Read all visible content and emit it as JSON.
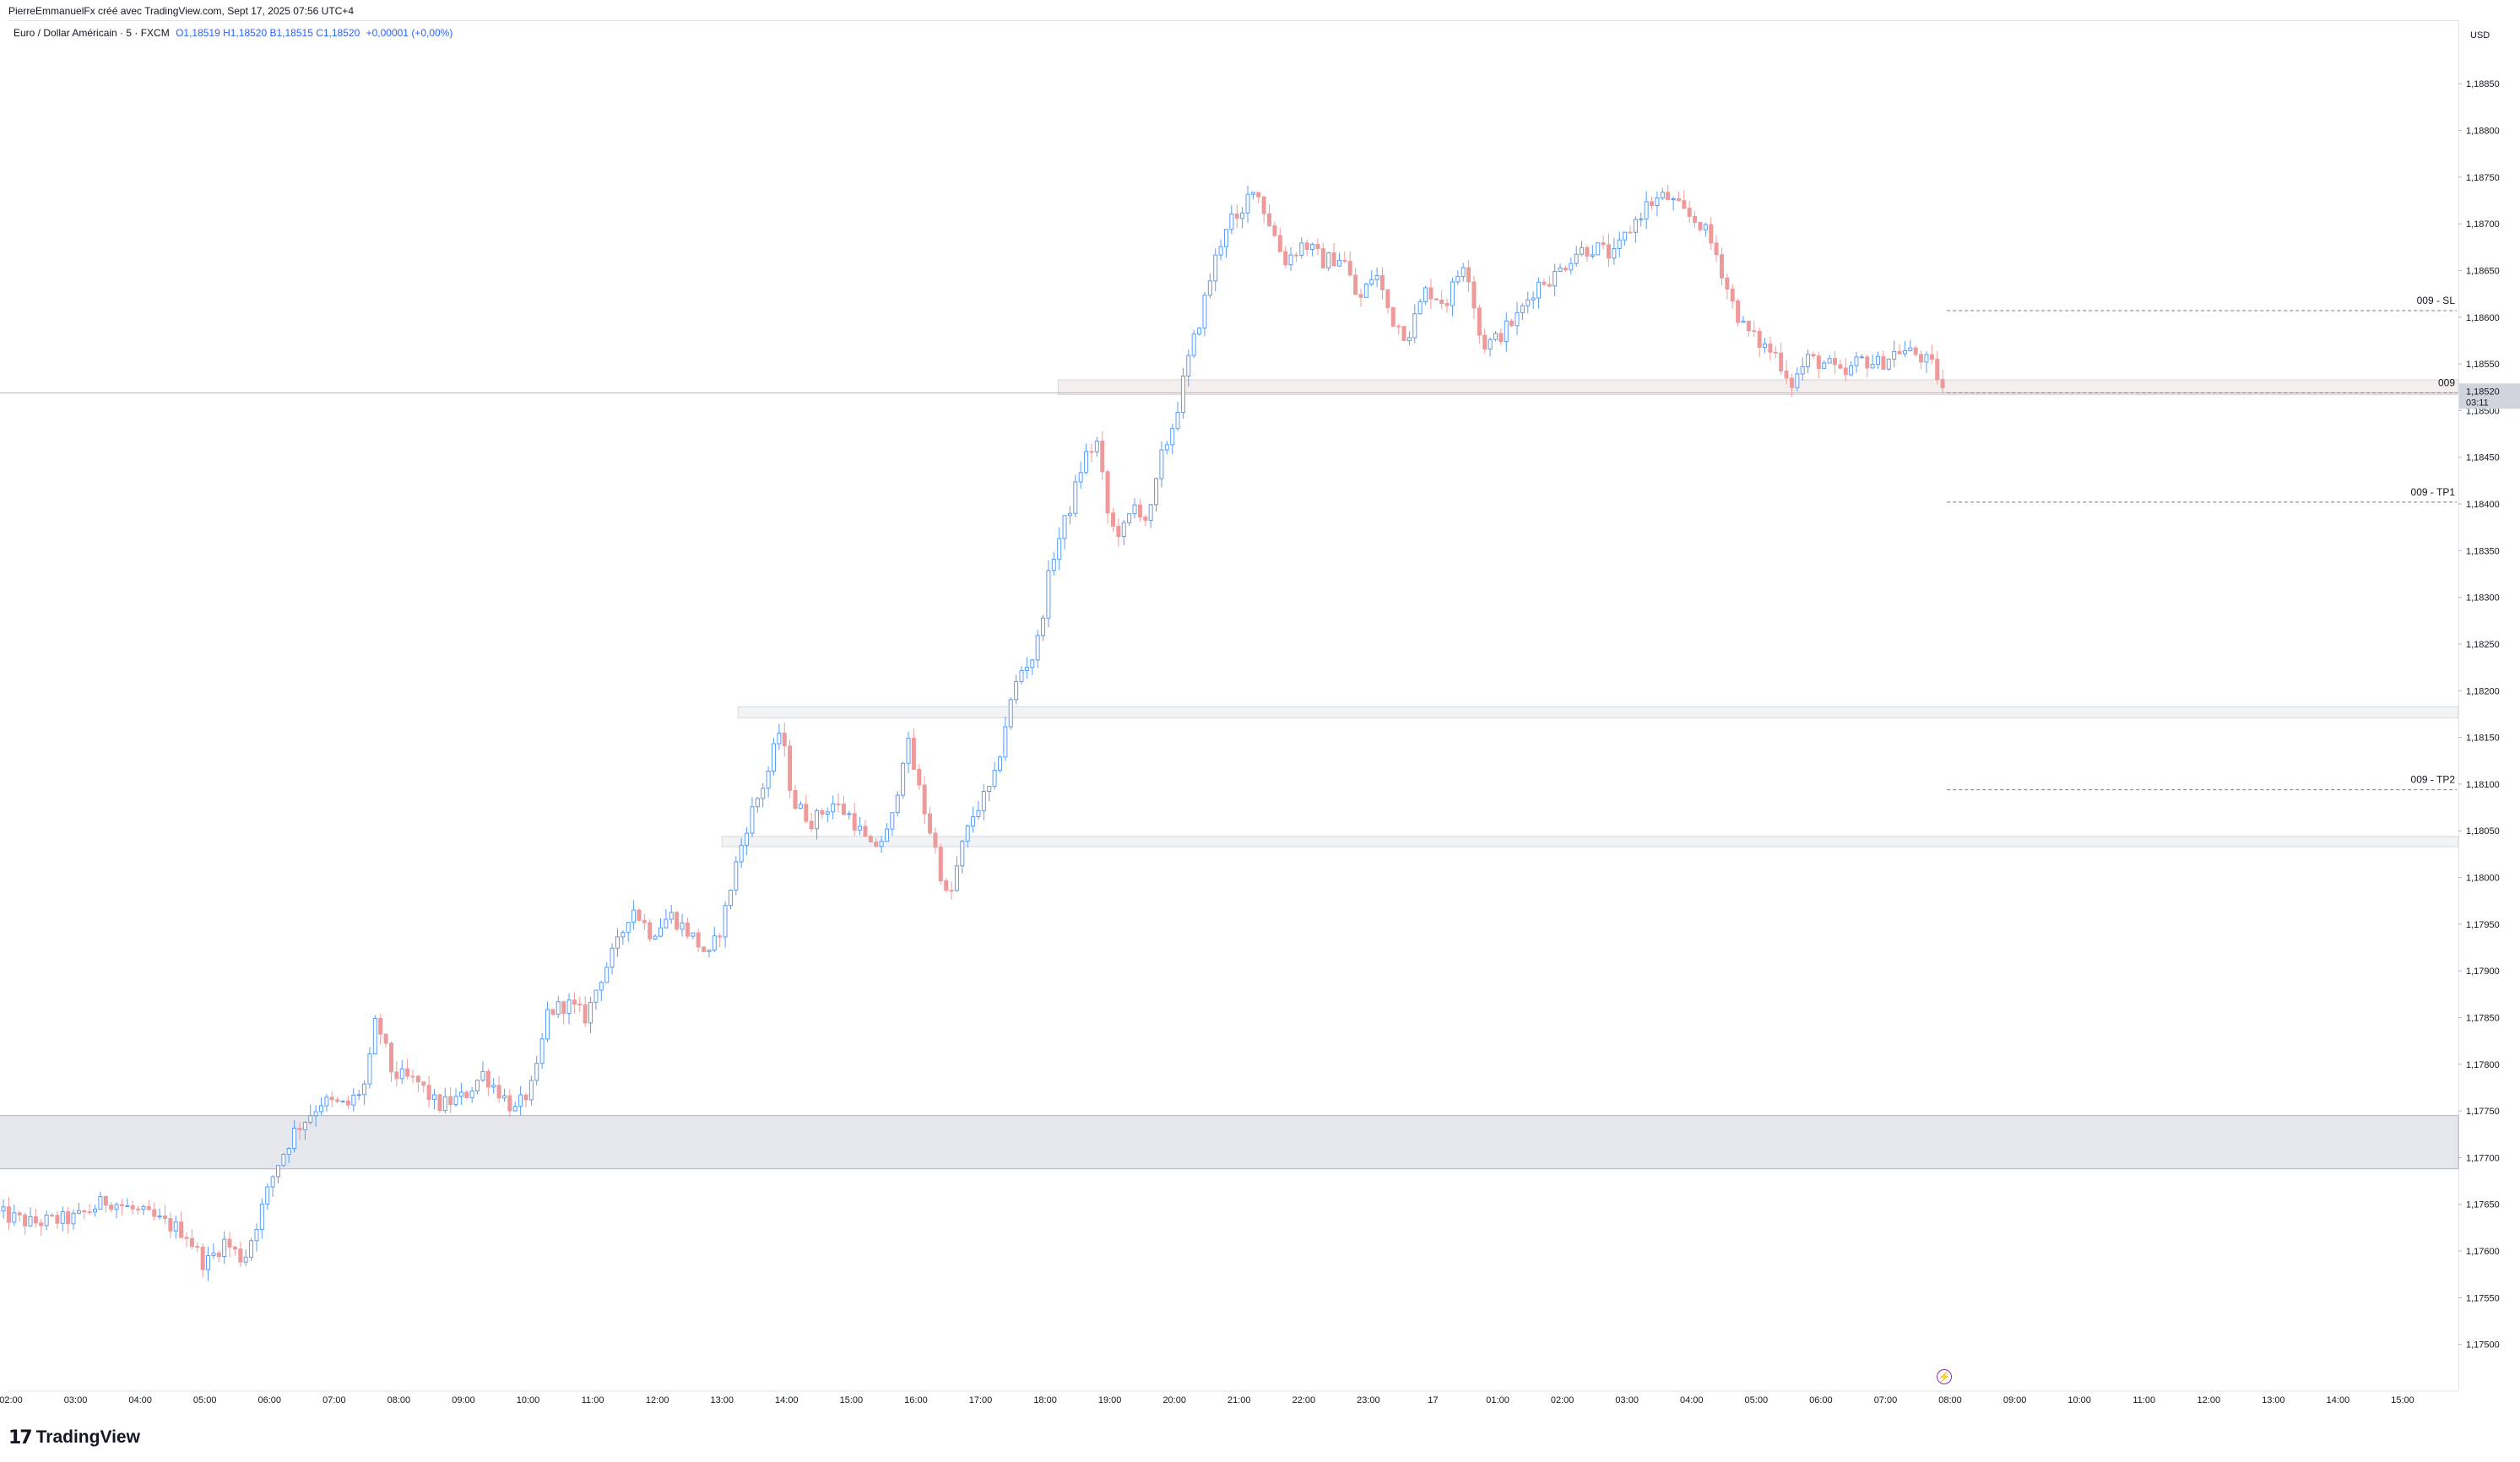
{
  "header": {
    "publisher_line": "PierreEmmanuelFx créé avec TradingView.com, Sept 17, 2025 07:56 UTC+4",
    "symbol": "Euro / Dollar Américain · 5 · FXCM",
    "ohlc": "O1,18519  H1,18520  B1,18515  C1,18520",
    "change": "+0,00001 (+0,00%)"
  },
  "price_axis": {
    "currency": "USD"
  },
  "brand": {
    "name": "TradingView",
    "mark": "17"
  },
  "colors": {
    "up": "#5b9cf6",
    "down": "#ef9a9a",
    "zone": "#e6e7ec",
    "zone_light": "#f2f3f5",
    "dash": "#787b86",
    "last_price_bg": "#d1d4dc"
  },
  "chart_data": {
    "type": "candlestick",
    "title": "",
    "xlabel": "",
    "ylabel": "",
    "ylim": [
      1.1745,
      1.18918
    ],
    "y_ticks": [
      "1,17500",
      "1,17550",
      "1,17600",
      "1,17650",
      "1,17700",
      "1,17750",
      "1,17800",
      "1,17850",
      "1,17900",
      "1,17950",
      "1,18000",
      "1,18050",
      "1,18100",
      "1,18150",
      "1,18200",
      "1,18250",
      "1,18300",
      "1,18350",
      "1,18400",
      "1,18450",
      "1,18500",
      "1,18550",
      "1,18600",
      "1,18650",
      "1,18700",
      "1,18750",
      "1,18800",
      "1,18850"
    ],
    "y_tick_values": [
      1.175,
      1.1755,
      1.176,
      1.1765,
      1.177,
      1.1775,
      1.178,
      1.1785,
      1.179,
      1.1795,
      1.18,
      1.1805,
      1.181,
      1.1815,
      1.182,
      1.1825,
      1.183,
      1.1835,
      1.184,
      1.1845,
      1.185,
      1.1855,
      1.186,
      1.1865,
      1.187,
      1.1875,
      1.188,
      1.1885
    ],
    "x_range_hours": [
      2,
      39
    ],
    "x_ticks": [
      {
        "h": 2,
        "label": "02:00"
      },
      {
        "h": 3,
        "label": "03:00"
      },
      {
        "h": 4,
        "label": "04:00"
      },
      {
        "h": 5,
        "label": "05:00"
      },
      {
        "h": 6,
        "label": "06:00"
      },
      {
        "h": 7,
        "label": "07:00"
      },
      {
        "h": 8,
        "label": "08:00"
      },
      {
        "h": 9,
        "label": "09:00"
      },
      {
        "h": 10,
        "label": "10:00"
      },
      {
        "h": 11,
        "label": "11:00"
      },
      {
        "h": 12,
        "label": "12:00"
      },
      {
        "h": 13,
        "label": "13:00"
      },
      {
        "h": 14,
        "label": "14:00"
      },
      {
        "h": 15,
        "label": "15:00"
      },
      {
        "h": 16,
        "label": "16:00"
      },
      {
        "h": 17,
        "label": "17:00"
      },
      {
        "h": 18,
        "label": "18:00"
      },
      {
        "h": 19,
        "label": "19:00"
      },
      {
        "h": 20,
        "label": "20:00"
      },
      {
        "h": 21,
        "label": "21:00"
      },
      {
        "h": 22,
        "label": "22:00"
      },
      {
        "h": 23,
        "label": "23:00"
      },
      {
        "h": 24,
        "label": "17"
      },
      {
        "h": 25,
        "label": "01:00"
      },
      {
        "h": 26,
        "label": "02:00"
      },
      {
        "h": 27,
        "label": "03:00"
      },
      {
        "h": 28,
        "label": "04:00"
      },
      {
        "h": 29,
        "label": "05:00"
      },
      {
        "h": 30,
        "label": "06:00"
      },
      {
        "h": 31,
        "label": "07:00"
      },
      {
        "h": 32,
        "label": "08:00"
      },
      {
        "h": 33,
        "label": "09:00"
      },
      {
        "h": 34,
        "label": "10:00"
      },
      {
        "h": 35,
        "label": "11:00"
      },
      {
        "h": 36,
        "label": "12:00"
      },
      {
        "h": 37,
        "label": "13:00"
      },
      {
        "h": 38,
        "label": "14:00"
      },
      {
        "h": 39,
        "label": "15:00"
      }
    ],
    "price_path": [
      [
        1.8,
        1.1764
      ],
      [
        2.3,
        1.1763
      ],
      [
        3.0,
        1.17635
      ],
      [
        3.5,
        1.17655
      ],
      [
        4.2,
        1.17635
      ],
      [
        4.7,
        1.1762
      ],
      [
        5.0,
        1.17585
      ],
      [
        5.3,
        1.1761
      ],
      [
        5.6,
        1.1759
      ],
      [
        5.85,
        1.1764
      ],
      [
        6.1,
        1.1769
      ],
      [
        6.4,
        1.1773
      ],
      [
        6.8,
        1.1776
      ],
      [
        7.2,
        1.17755
      ],
      [
        7.5,
        1.1778
      ],
      [
        7.65,
        1.1785
      ],
      [
        7.9,
        1.1779
      ],
      [
        8.3,
        1.1778
      ],
      [
        8.6,
        1.17755
      ],
      [
        9.0,
        1.17765
      ],
      [
        9.3,
        1.1779
      ],
      [
        9.5,
        1.17775
      ],
      [
        9.8,
        1.1775
      ],
      [
        10.1,
        1.1778
      ],
      [
        10.3,
        1.17855
      ],
      [
        10.6,
        1.17865
      ],
      [
        10.9,
        1.1785
      ],
      [
        11.1,
        1.1789
      ],
      [
        11.4,
        1.1793
      ],
      [
        11.6,
        1.1797
      ],
      [
        11.9,
        1.1794
      ],
      [
        12.2,
        1.1796
      ],
      [
        12.5,
        1.1794
      ],
      [
        12.8,
        1.17915
      ],
      [
        13.0,
        1.1795
      ],
      [
        13.2,
        1.1801
      ],
      [
        13.4,
        1.1806
      ],
      [
        13.7,
        1.1811
      ],
      [
        13.9,
        1.1816
      ],
      [
        14.1,
        1.1808
      ],
      [
        14.4,
        1.1806
      ],
      [
        14.7,
        1.1808
      ],
      [
        15.0,
        1.18065
      ],
      [
        15.3,
        1.1803
      ],
      [
        15.6,
        1.1805
      ],
      [
        15.85,
        1.1815
      ],
      [
        16.1,
        1.1808
      ],
      [
        16.3,
        1.1803
      ],
      [
        16.5,
        1.1797
      ],
      [
        16.7,
        1.1803
      ],
      [
        16.9,
        1.1807
      ],
      [
        17.2,
        1.181
      ],
      [
        17.4,
        1.1817
      ],
      [
        17.6,
        1.1822
      ],
      [
        17.85,
        1.1824
      ],
      [
        18.1,
        1.1834
      ],
      [
        18.4,
        1.184
      ],
      [
        18.6,
        1.1845
      ],
      [
        18.8,
        1.18465
      ],
      [
        19.0,
        1.18375
      ],
      [
        19.2,
        1.1837
      ],
      [
        19.4,
        1.184
      ],
      [
        19.6,
        1.1838
      ],
      [
        19.8,
        1.1845
      ],
      [
        20.0,
        1.1849
      ],
      [
        20.2,
        1.1855
      ],
      [
        20.4,
        1.186
      ],
      [
        20.6,
        1.18655
      ],
      [
        20.85,
        1.1871
      ],
      [
        21.0,
        1.18695
      ],
      [
        21.2,
        1.18745
      ],
      [
        21.45,
        1.18705
      ],
      [
        21.7,
        1.1866
      ],
      [
        22.0,
        1.1868
      ],
      [
        22.3,
        1.1866
      ],
      [
        22.6,
        1.18665
      ],
      [
        22.85,
        1.18615
      ],
      [
        23.1,
        1.1865
      ],
      [
        23.35,
        1.186
      ],
      [
        23.6,
        1.1858
      ],
      [
        23.9,
        1.1863
      ],
      [
        24.2,
        1.18615
      ],
      [
        24.5,
        1.18665
      ],
      [
        24.75,
        1.1857
      ],
      [
        24.95,
        1.18575
      ],
      [
        25.3,
        1.186
      ],
      [
        25.6,
        1.18635
      ],
      [
        25.9,
        1.18645
      ],
      [
        26.2,
        1.1867
      ],
      [
        26.5,
        1.18675
      ],
      [
        26.8,
        1.18665
      ],
      [
        27.0,
        1.1869
      ],
      [
        27.3,
        1.1872
      ],
      [
        27.6,
        1.1873
      ],
      [
        27.9,
        1.1871
      ],
      [
        28.15,
        1.187
      ],
      [
        28.4,
        1.18665
      ],
      [
        28.6,
        1.1862
      ],
      [
        28.8,
        1.1859
      ],
      [
        29.0,
        1.18575
      ],
      [
        29.3,
        1.1856
      ],
      [
        29.55,
        1.1853
      ],
      [
        29.8,
        1.18555
      ],
      [
        30.1,
        1.1855
      ],
      [
        30.35,
        1.18535
      ],
      [
        30.6,
        1.18555
      ],
      [
        30.9,
        1.1855
      ],
      [
        31.2,
        1.18565
      ],
      [
        31.5,
        1.1856
      ],
      [
        31.75,
        1.18545
      ],
      [
        31.92,
        1.18518
      ]
    ],
    "zones": [
      {
        "from_h": 1.8,
        "y_top": 1.17745,
        "y_bot": 1.17688,
        "style": "dark"
      },
      {
        "from_h": 13.0,
        "y_top": 1.18044,
        "y_bot": 1.18033,
        "style": "light"
      },
      {
        "from_h": 13.25,
        "y_top": 1.18183,
        "y_bot": 1.18171,
        "style": "light"
      },
      {
        "from_h": 18.2,
        "y_top": 1.18533,
        "y_bot": 1.18517,
        "style": "pink"
      }
    ],
    "support_line": {
      "from_h": 1.8,
      "y": 1.18519
    },
    "order_levels": [
      {
        "label": "009 - SL",
        "y": 1.18607,
        "from_h": 31.95
      },
      {
        "label": "009",
        "y": 1.18519,
        "from_h": 31.95
      },
      {
        "label": "009 - TP1",
        "y": 1.18402,
        "from_h": 31.95
      },
      {
        "label": "009 - TP2",
        "y": 1.18094,
        "from_h": 31.95
      }
    ],
    "last_price": {
      "label": "1,18520",
      "value": 1.1852,
      "countdown": "03:11"
    }
  }
}
